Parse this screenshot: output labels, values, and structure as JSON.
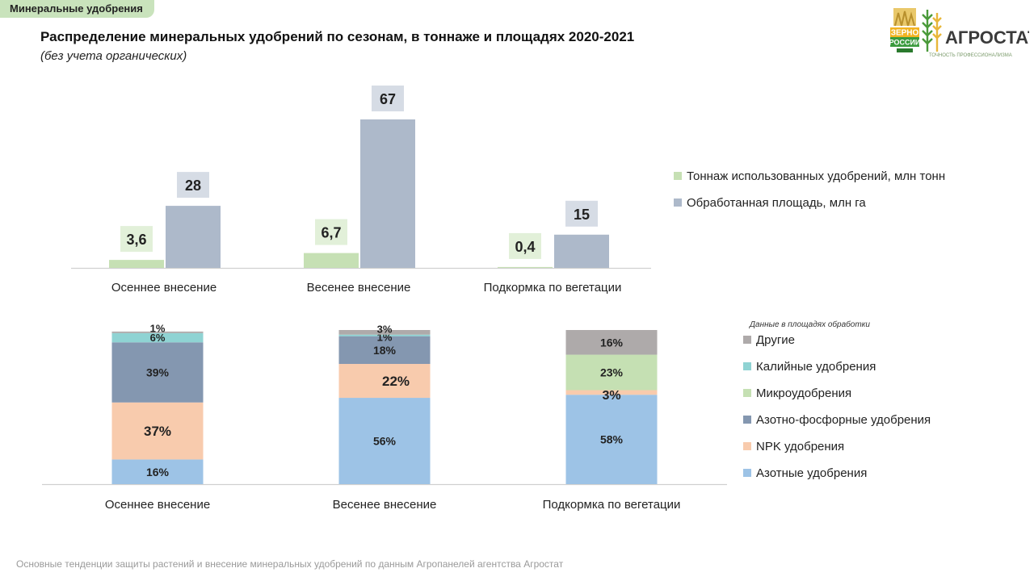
{
  "header": {
    "tag": "Минеральные удобрения",
    "title": "Распределение минеральных удобрений по сезонам, в тоннаже и площадях 2020-2021",
    "subtitle": "(без учета органических)"
  },
  "logo": {
    "brand1_line1": "ЗЕРНО",
    "brand1_line2": "РОССИИ",
    "brand2": "АГРОСТАТ",
    "brand2_tagline": "ТОЧНОСТЬ ПРОФЕССИОНАЛИЗМА"
  },
  "footer": {
    "text": "Основные тенденции защиты растений и внесение минеральных удобрений  по данным Агропанелей агентства Агростат"
  },
  "colors": {
    "tonnage": "#c6e0b4",
    "area": "#adb9ca",
    "label_box_tonnage": "#e2f0d9",
    "label_box_area": "#d6dce5",
    "nitrogen": "#9dc3e6",
    "npk": "#f8cbad",
    "np": "#8497b0",
    "micro": "#c5e0b3",
    "potash": "#8fd3d3",
    "other": "#aeaaaa"
  },
  "chart_data": [
    {
      "type": "bar",
      "categories": [
        "Осеннее внесение",
        "Весенее внесение",
        "Подкормка по вегетации"
      ],
      "series": [
        {
          "name": "Тоннаж использованных удобрений, млн тонн",
          "values": [
            3.6,
            6.7,
            0.4
          ],
          "labels": [
            "3,6",
            "6,7",
            "0,4"
          ],
          "color_key": "tonnage"
        },
        {
          "name": "Обработанная площадь, млн га",
          "values": [
            28,
            67,
            15
          ],
          "labels": [
            "28",
            "67",
            "15"
          ],
          "color_key": "area"
        }
      ],
      "ylim": [
        0,
        67
      ],
      "legend": "right"
    },
    {
      "type": "bar",
      "stacked": true,
      "legend_title": "Данные в площадях обработки",
      "categories": [
        "Осеннее внесение",
        "Весенее внесение",
        "Подкормка по вегетации"
      ],
      "series": [
        {
          "name": "Азотные удобрения",
          "values": [
            16,
            56,
            58
          ],
          "labels": [
            "16%",
            "56%",
            "58%"
          ],
          "color_key": "nitrogen"
        },
        {
          "name": "NPK удобрения",
          "values": [
            37,
            22,
            3
          ],
          "labels": [
            "37%",
            "22%",
            "3%"
          ],
          "color_key": "npk"
        },
        {
          "name": "Азотно-фосфорные удобрения",
          "values": [
            39,
            18,
            0
          ],
          "labels": [
            "39%",
            "18%",
            ""
          ],
          "color_key": "np"
        },
        {
          "name": "Микроудобрения",
          "values": [
            0,
            0,
            23
          ],
          "labels": [
            "",
            "",
            "23%"
          ],
          "color_key": "micro"
        },
        {
          "name": "Калийные удобрения",
          "values": [
            6,
            1,
            0
          ],
          "labels": [
            "6%",
            "1%",
            ""
          ],
          "color_key": "potash"
        },
        {
          "name": "Другие",
          "values": [
            1,
            3,
            16
          ],
          "labels": [
            "1%",
            "3%",
            "16%"
          ],
          "color_key": "other"
        }
      ],
      "legend_order": [
        "Другие",
        "Калийные удобрения",
        "Микроудобрения",
        "Азотно-фосфорные удобрения",
        "NPK удобрения",
        "Азотные удобрения"
      ],
      "ylim": [
        0,
        100
      ],
      "legend": "right"
    }
  ]
}
